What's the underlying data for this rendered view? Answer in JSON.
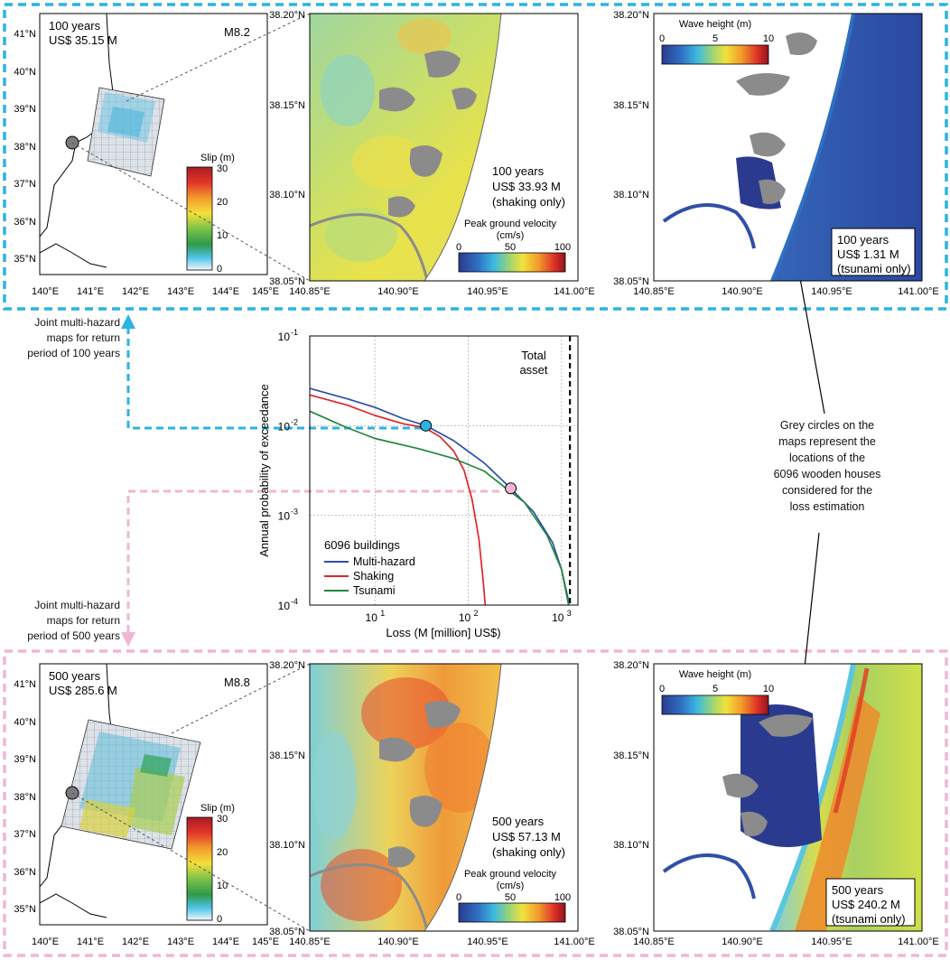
{
  "rp100": {
    "slip_map": {
      "period": "100 years",
      "loss": "US$ 35.15 M",
      "magnitude": "M8.2"
    },
    "pgv_map": {
      "period": "100 years",
      "loss": "US$ 33.93 M",
      "note": "(shaking only)"
    },
    "tsunami_map": {
      "period": "100 years",
      "loss": "US$ 1.31 M",
      "note": "(tsunami only)"
    }
  },
  "rp500": {
    "slip_map": {
      "period": "500 years",
      "loss": "US$ 285.6 M",
      "magnitude": "M8.8"
    },
    "pgv_map": {
      "period": "500 years",
      "loss": "US$ 57.13 M",
      "note": "(shaking only)"
    },
    "tsunami_map": {
      "period": "500 years",
      "loss": "US$ 240.2 M",
      "note": "(tsunami only)"
    }
  },
  "slip_axes": {
    "lat_ticks": [
      "41°N",
      "40°N",
      "39°N",
      "38°N",
      "37°N",
      "36°N",
      "35°N"
    ],
    "lon_ticks": [
      "140°E",
      "141°E",
      "142°E",
      "143°E",
      "144°E",
      "145°E"
    ]
  },
  "local_axes": {
    "lat_ticks": [
      "38.20°N",
      "38.15°N",
      "38.10°N",
      "38.05°N"
    ],
    "lon_ticks": [
      "140.85°E",
      "140.90°E",
      "140.95°E",
      "141.00°E"
    ]
  },
  "slip_colorbar": {
    "title": "Slip (m)",
    "ticks": [
      "30",
      "20",
      "10",
      "0"
    ],
    "range": [
      0,
      30
    ]
  },
  "pgv_colorbar": {
    "title_line1": "Peak ground velocity",
    "title_line2": "(cm/s)",
    "ticks": [
      "0",
      "50",
      "100"
    ],
    "range": [
      0,
      100
    ]
  },
  "wave_colorbar": {
    "title": "Wave height (m)",
    "ticks": [
      "0",
      "5",
      "10"
    ],
    "range": [
      0,
      10
    ]
  },
  "notes": {
    "joint100": [
      "Joint multi-hazard",
      "maps for return",
      "period of 100 years"
    ],
    "joint500": [
      "Joint multi-hazard",
      "maps for return",
      "period of 500 years"
    ],
    "grey": [
      "Grey circles on the",
      "maps represent the",
      "locations of the",
      "6096 wooden houses",
      "considered for the",
      "loss estimation"
    ]
  },
  "colors": {
    "rp100_accent": "#2bb3e3",
    "rp500_accent": "#f0b6d5",
    "multi": "#2d4fa8",
    "shaking": "#e0252b",
    "tsunami": "#22883a"
  },
  "chart_data": {
    "type": "line",
    "xlabel": "Loss (M [million] US$)",
    "ylabel": "Annual probability of exceedance",
    "x_scale": "log",
    "y_scale": "log",
    "xlim": [
      2,
      1500
    ],
    "ylim": [
      0.0001,
      0.1
    ],
    "x_ticks": [
      "10",
      "10",
      "10"
    ],
    "x_tick_exponents": [
      "1",
      "2",
      "3"
    ],
    "y_ticks": [
      "10",
      "10",
      "10",
      "10"
    ],
    "y_tick_exponents": [
      "-1",
      "-2",
      "-3",
      "-4"
    ],
    "legend_title": "6096 buildings",
    "legend_location": "lower-left",
    "annotation": [
      "Total",
      "asset"
    ],
    "total_asset": 1230,
    "grid": true,
    "series": [
      {
        "name": "Multi-hazard",
        "color": "#2d4fa8",
        "x": [
          2,
          5,
          10,
          20,
          35.15,
          70,
          150,
          285.6,
          500,
          800,
          1000,
          1100,
          1170,
          1190
        ],
        "y": [
          0.026,
          0.02,
          0.016,
          0.012,
          0.01,
          0.0068,
          0.0038,
          0.002,
          0.0011,
          0.0005,
          0.00025,
          0.00016,
          0.00012,
          0.0001
        ]
      },
      {
        "name": "Shaking",
        "color": "#e0252b",
        "x": [
          2,
          5,
          10,
          20,
          33.93,
          50,
          70,
          90,
          110,
          130,
          145,
          152
        ],
        "y": [
          0.022,
          0.017,
          0.013,
          0.0105,
          0.0095,
          0.0075,
          0.0052,
          0.0032,
          0.0015,
          0.00055,
          0.00018,
          0.0001
        ]
      },
      {
        "name": "Tsunami",
        "color": "#22883a",
        "x": [
          2,
          5,
          10,
          30,
          70,
          150,
          240.2,
          400,
          700,
          1000,
          1150,
          1190
        ],
        "y": [
          0.0145,
          0.0095,
          0.0072,
          0.0055,
          0.0043,
          0.0031,
          0.0021,
          0.0014,
          0.0006,
          0.00025,
          0.00012,
          0.0001
        ]
      }
    ],
    "markers": [
      {
        "x": 35.15,
        "y": 0.01,
        "color": "#2bb3e3"
      },
      {
        "x": 285.6,
        "y": 0.002,
        "color": "#f0b6d5"
      }
    ]
  }
}
